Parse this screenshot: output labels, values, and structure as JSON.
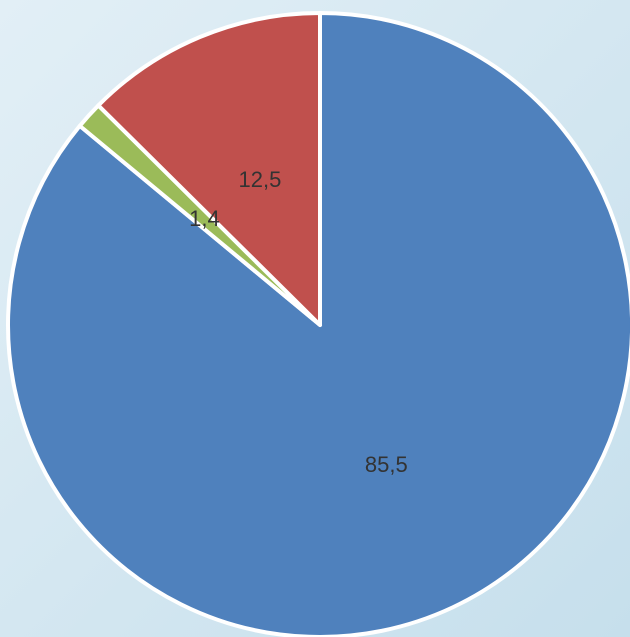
{
  "chart_data": {
    "type": "pie",
    "values": [
      85.5,
      1.4,
      12.5
    ],
    "value_labels": [
      "85,5",
      "1,4",
      "12,5"
    ],
    "colors": [
      "#4f81bd",
      "#9bbb59",
      "#c0504d"
    ],
    "start_angle": 0,
    "direction": "clockwise"
  }
}
